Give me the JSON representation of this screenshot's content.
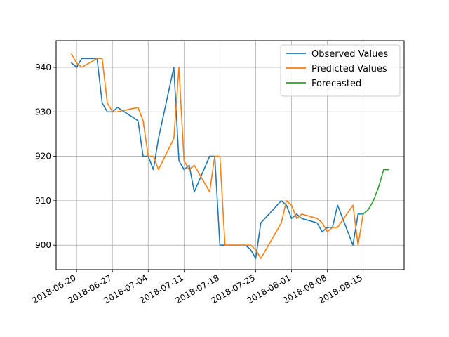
{
  "chart_data": {
    "type": "line",
    "title": "",
    "xlabel": "",
    "ylabel": "",
    "grid": true,
    "legend_position": "top-right",
    "xlim": [
      "2018-06-16",
      "2018-08-23"
    ],
    "ylim": [
      894.5,
      946
    ],
    "x_ticks": [
      "2018-06-20",
      "2018-06-27",
      "2018-07-04",
      "2018-07-11",
      "2018-07-18",
      "2018-07-25",
      "2018-08-01",
      "2018-08-08",
      "2018-08-15"
    ],
    "y_ticks": [
      900,
      910,
      920,
      930,
      940
    ],
    "series": [
      {
        "name": "Observed Values",
        "color": "#1f77b4",
        "x": [
          "2018-06-19",
          "2018-06-20",
          "2018-06-21",
          "2018-06-24",
          "2018-06-25",
          "2018-06-26",
          "2018-06-27",
          "2018-06-28",
          "2018-07-02",
          "2018-07-03",
          "2018-07-04",
          "2018-07-05",
          "2018-07-06",
          "2018-07-09",
          "2018-07-10",
          "2018-07-11",
          "2018-07-12",
          "2018-07-13",
          "2018-07-16",
          "2018-07-17",
          "2018-07-18",
          "2018-07-19",
          "2018-07-20",
          "2018-07-23",
          "2018-07-24",
          "2018-07-25",
          "2018-07-26",
          "2018-07-30",
          "2018-07-31",
          "2018-08-01",
          "2018-08-02",
          "2018-08-03",
          "2018-08-06",
          "2018-08-07",
          "2018-08-08",
          "2018-08-09",
          "2018-08-10",
          "2018-08-13",
          "2018-08-14",
          "2018-08-15"
        ],
        "values": [
          941,
          940,
          942,
          942,
          932,
          930,
          930,
          931,
          928,
          920,
          920,
          917,
          924,
          940,
          919,
          917,
          918,
          912,
          920,
          920,
          900,
          900,
          900,
          900,
          899,
          897,
          905,
          910,
          909,
          906,
          907,
          906,
          905,
          903,
          904,
          904,
          909,
          900,
          907,
          907
        ]
      },
      {
        "name": "Predicted Values",
        "color": "#ff7f0e",
        "x": [
          "2018-06-19",
          "2018-06-20",
          "2018-06-21",
          "2018-06-24",
          "2018-06-25",
          "2018-06-26",
          "2018-06-27",
          "2018-06-28",
          "2018-07-02",
          "2018-07-03",
          "2018-07-04",
          "2018-07-05",
          "2018-07-06",
          "2018-07-09",
          "2018-07-10",
          "2018-07-11",
          "2018-07-12",
          "2018-07-13",
          "2018-07-16",
          "2018-07-17",
          "2018-07-18",
          "2018-07-19",
          "2018-07-20",
          "2018-07-23",
          "2018-07-24",
          "2018-07-25",
          "2018-07-26",
          "2018-07-30",
          "2018-07-31",
          "2018-08-01",
          "2018-08-02",
          "2018-08-03",
          "2018-08-06",
          "2018-08-07",
          "2018-08-08",
          "2018-08-09",
          "2018-08-10",
          "2018-08-13",
          "2018-08-14",
          "2018-08-15"
        ],
        "values": [
          943,
          941,
          940,
          942,
          942,
          932,
          930,
          930,
          931,
          928,
          920,
          920,
          917,
          924,
          940,
          919,
          917,
          918,
          912,
          920,
          920,
          900,
          900,
          900,
          900,
          899,
          897,
          905,
          910,
          909,
          906,
          907,
          906,
          905,
          903,
          904,
          904,
          909,
          900,
          907
        ]
      },
      {
        "name": "Forecasted",
        "color": "#2ca02c",
        "x": [
          "2018-08-15",
          "2018-08-16",
          "2018-08-17",
          "2018-08-18",
          "2018-08-19",
          "2018-08-20"
        ],
        "values": [
          907,
          908,
          910,
          913,
          917,
          917
        ]
      }
    ]
  }
}
